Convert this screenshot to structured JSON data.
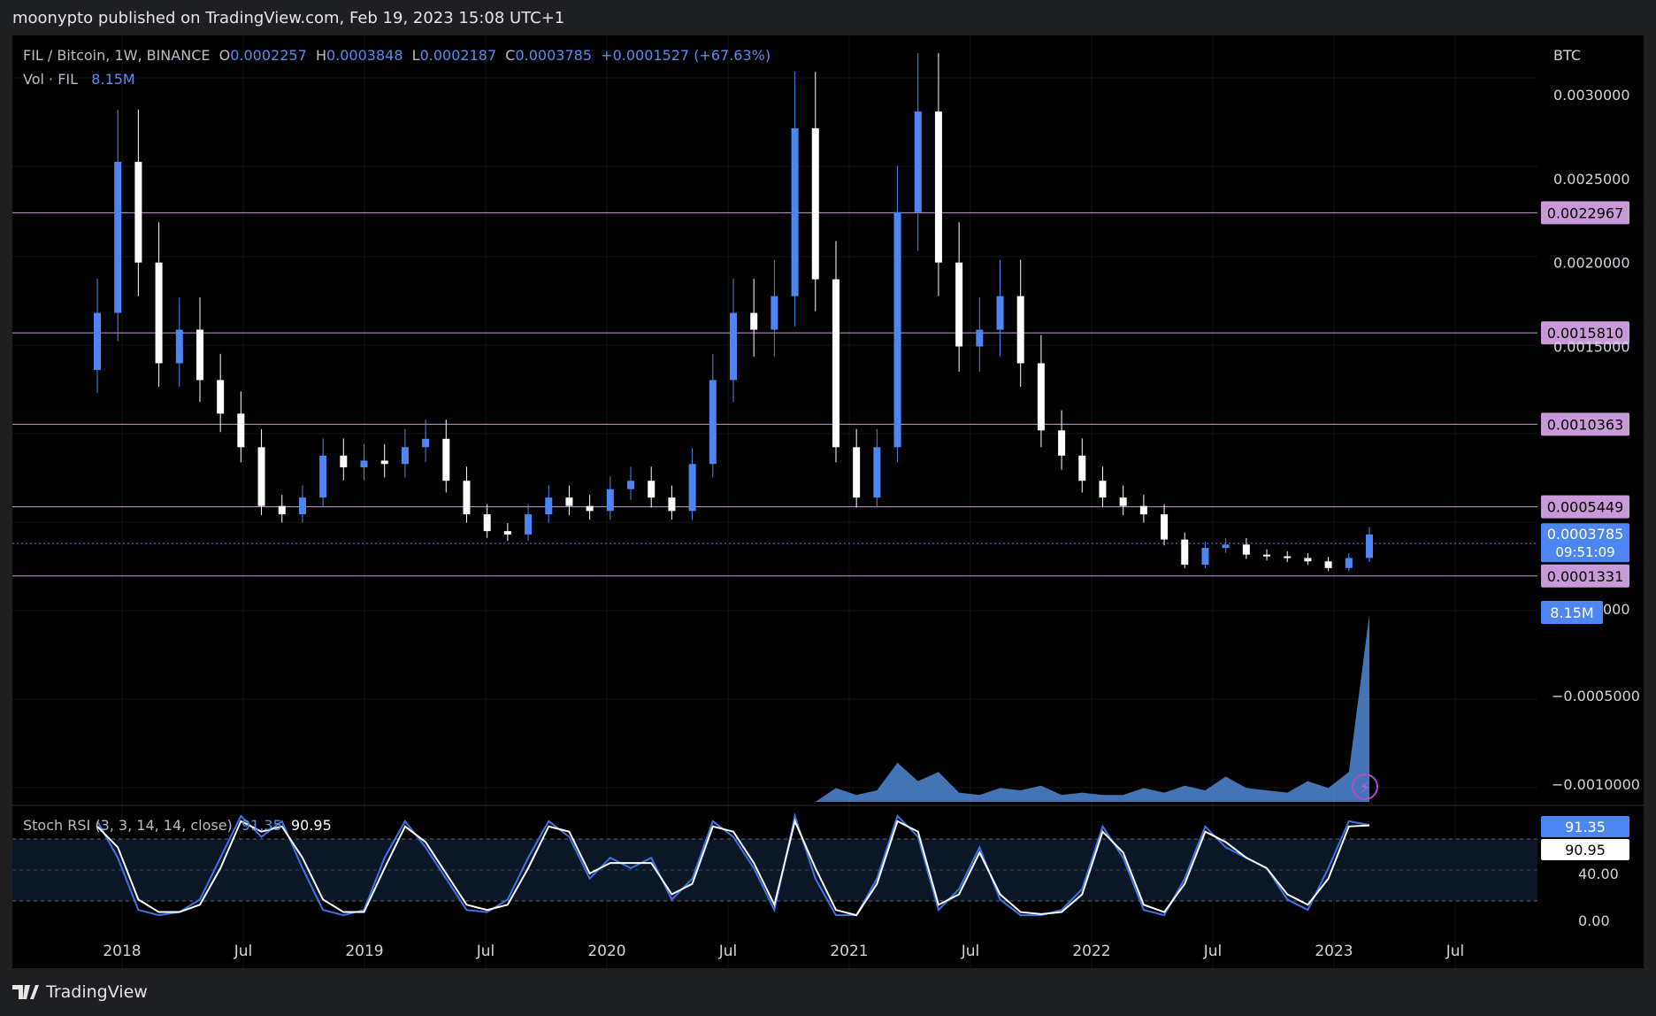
{
  "header": {
    "published": "moonypto published on TradingView.com, Feb 19, 2023 15:08 UTC+1"
  },
  "symbol": {
    "title": "FIL / Bitcoin, 1W, BINANCE",
    "open_label": "O",
    "open": "0.0002257",
    "high_label": "H",
    "high": "0.0003848",
    "low_label": "L",
    "low": "0.0002187",
    "close_label": "C",
    "close": "0.0003785",
    "change": "+0.0001527 (+67.63%)"
  },
  "volume_legend": {
    "label": "Vol · FIL",
    "value": "8.15M"
  },
  "stoch_legend": {
    "label": "Stoch RSI (3, 3, 14, 14, close)",
    "k": "91.35",
    "d": "90.95"
  },
  "price_axis": {
    "unit": "BTC",
    "ticks": [
      "0.0030000",
      "0.0025000",
      "0.0020000",
      "0.0015000"
    ],
    "hidden_tick": "0.0000000",
    "volume_ticks": [
      "−0.0005000",
      "−0.0010000"
    ],
    "stoch_ticks": [
      "40.00",
      "0.00"
    ]
  },
  "level_lines": [
    {
      "value": 0.0022967,
      "label": "0.0022967"
    },
    {
      "value": 0.001581,
      "label": "0.0015810"
    },
    {
      "value": 0.0010363,
      "label": "0.0010363"
    },
    {
      "value": 0.0005449,
      "label": "0.0005449"
    },
    {
      "value": 0.0001331,
      "label": "0.0001331"
    }
  ],
  "last_price": {
    "value": "0.0003785",
    "countdown": "09:51:09"
  },
  "last_volume": "8.15M",
  "time_axis": [
    "2018",
    "Jul",
    "2019",
    "Jul",
    "2020",
    "Jul",
    "2021",
    "Jul",
    "2022",
    "Jul",
    "2023",
    "Jul"
  ],
  "footer": {
    "brand": "TradingView"
  },
  "colors": {
    "level_line": "#c99ad8",
    "level_badge": "#c99ad8",
    "accent_blue": "#4d86f2",
    "candle_up": "#4d86f2",
    "candle_down": "#ffffff",
    "volume_fill": "#5b9bf0",
    "stoch_k": "#3e74e8",
    "stoch_d": "#ffffff"
  },
  "chart_data": {
    "type": "candlestick",
    "title": "FIL / Bitcoin, 1W, BINANCE",
    "ylabel": "BTC",
    "ylim": [
      0.0,
      0.0031
    ],
    "x": [
      "2017-12",
      "2018-01",
      "2018-02",
      "2018-03",
      "2018-04",
      "2018-05",
      "2018-06",
      "2018-07",
      "2018-08",
      "2018-09",
      "2018-10",
      "2018-11",
      "2018-12",
      "2019-01",
      "2019-02",
      "2019-03",
      "2019-04",
      "2019-05",
      "2019-06",
      "2019-07",
      "2019-08",
      "2019-09",
      "2019-10",
      "2019-11",
      "2019-12",
      "2020-01",
      "2020-02",
      "2020-03",
      "2020-04",
      "2020-05",
      "2020-06",
      "2020-07",
      "2020-08",
      "2020-09",
      "2020-10",
      "2020-11",
      "2020-12",
      "2021-01",
      "2021-02",
      "2021-03",
      "2021-04",
      "2021-05",
      "2021-06",
      "2021-07",
      "2021-08",
      "2021-09",
      "2021-10",
      "2021-11",
      "2021-12",
      "2022-01",
      "2022-02",
      "2022-03",
      "2022-04",
      "2022-05",
      "2022-06",
      "2022-07",
      "2022-08",
      "2022-09",
      "2022-10",
      "2022-11",
      "2022-12",
      "2023-01",
      "2023-02"
    ],
    "close": [
      0.0017,
      0.0026,
      0.002,
      0.0014,
      0.0016,
      0.0013,
      0.0011,
      0.0009,
      0.00055,
      0.0005,
      0.0006,
      0.00085,
      0.00078,
      0.00082,
      0.0008,
      0.0009,
      0.00095,
      0.0007,
      0.0005,
      0.0004,
      0.00038,
      0.0005,
      0.0006,
      0.00055,
      0.00052,
      0.00065,
      0.0007,
      0.0006,
      0.00052,
      0.0008,
      0.0013,
      0.0017,
      0.0016,
      0.0018,
      0.0028,
      0.0019,
      0.0009,
      0.0006,
      0.0009,
      0.0023,
      0.0029,
      0.002,
      0.0015,
      0.0016,
      0.0018,
      0.0014,
      0.001,
      0.00085,
      0.0007,
      0.0006,
      0.00055,
      0.0005,
      0.00035,
      0.0002,
      0.0003,
      0.00032,
      0.00026,
      0.00025,
      0.00024,
      0.00022,
      0.00018,
      0.00024,
      0.00038
    ]
  },
  "volume_data": {
    "values": [
      0,
      0,
      0,
      0,
      0,
      0,
      0,
      0,
      0,
      0,
      0,
      0,
      0,
      0,
      0,
      0,
      0,
      0,
      0,
      0,
      0,
      0,
      0,
      0,
      0,
      0,
      0,
      0,
      0,
      0,
      0,
      0,
      0,
      0,
      0,
      0,
      0.6,
      0.3,
      0.5,
      1.7,
      0.9,
      1.3,
      0.4,
      0.3,
      0.6,
      0.5,
      0.7,
      0.3,
      0.4,
      0.3,
      0.3,
      0.6,
      0.4,
      0.7,
      0.5,
      1.1,
      0.6,
      0.5,
      0.4,
      0.9,
      0.6,
      1.3,
      8.15
    ]
  },
  "stoch_data": {
    "k": [
      95,
      60,
      10,
      5,
      8,
      20,
      60,
      100,
      80,
      95,
      50,
      10,
      5,
      10,
      60,
      95,
      70,
      40,
      10,
      8,
      20,
      60,
      95,
      80,
      40,
      60,
      50,
      60,
      20,
      40,
      95,
      80,
      50,
      10,
      100,
      40,
      5,
      5,
      40,
      100,
      80,
      10,
      30,
      70,
      20,
      5,
      5,
      10,
      30,
      90,
      60,
      10,
      5,
      40,
      90,
      70,
      60,
      50,
      20,
      10,
      50,
      95,
      91.35
    ],
    "d": [
      90,
      70,
      20,
      8,
      8,
      15,
      50,
      95,
      85,
      90,
      60,
      20,
      8,
      8,
      50,
      90,
      75,
      45,
      15,
      10,
      15,
      50,
      90,
      85,
      45,
      55,
      55,
      55,
      25,
      35,
      90,
      85,
      55,
      15,
      95,
      50,
      10,
      5,
      35,
      95,
      85,
      15,
      25,
      65,
      25,
      8,
      6,
      8,
      25,
      85,
      65,
      15,
      8,
      35,
      85,
      75,
      60,
      50,
      25,
      15,
      40,
      90,
      90.95
    ]
  }
}
